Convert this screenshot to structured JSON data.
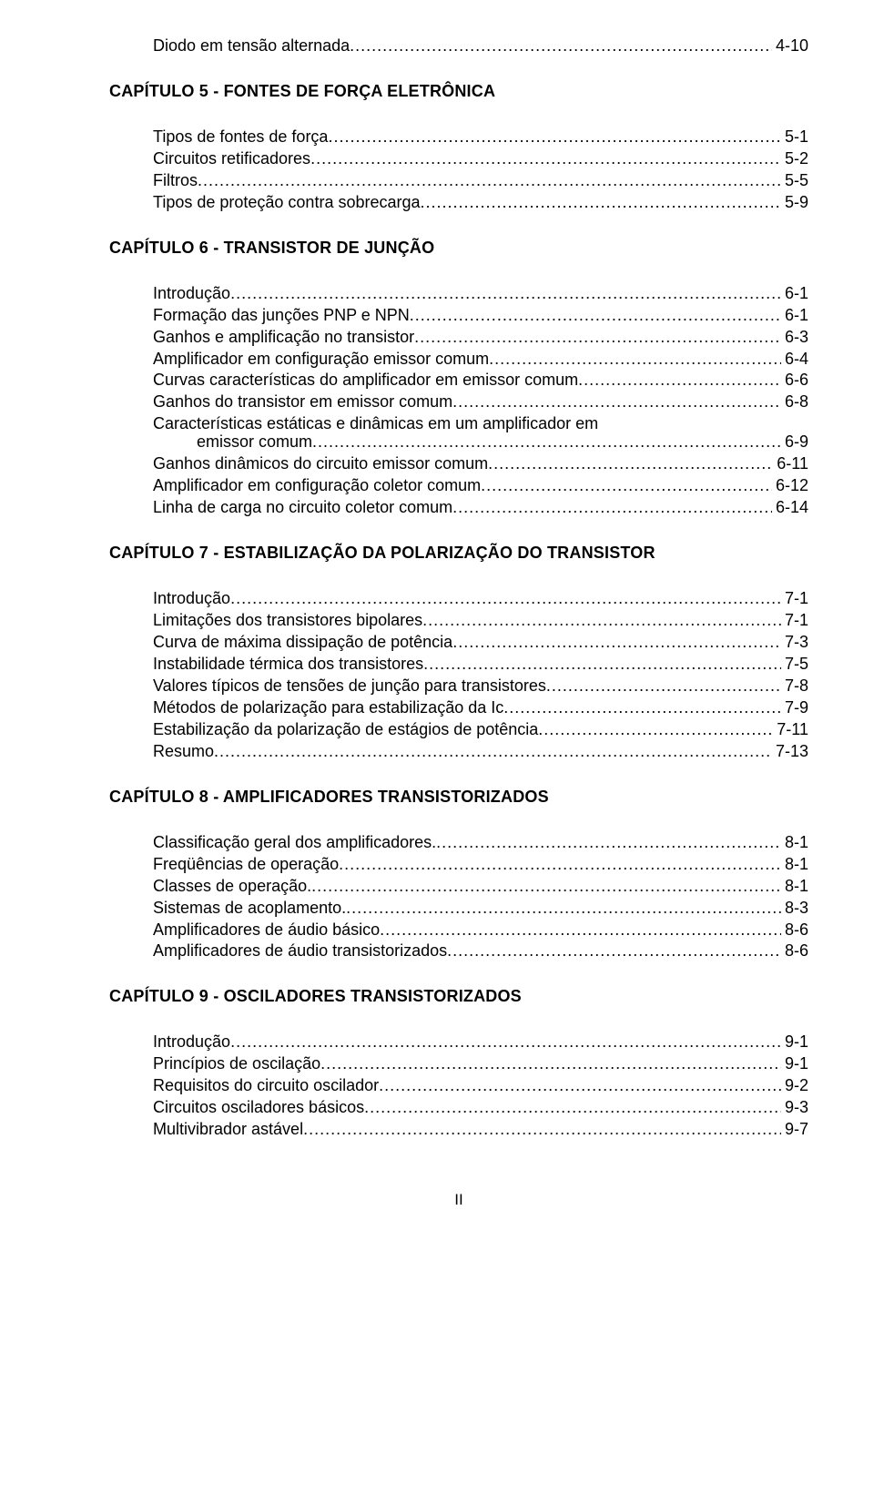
{
  "orphan_entries": [
    {
      "label": "Diodo em tensão alternada",
      "page": "4-10"
    }
  ],
  "chapters": [
    {
      "title": "CAPÍTULO 5  -  FONTES DE FORÇA ELETRÔNICA",
      "entries": [
        {
          "label": "Tipos de fontes de força",
          "page": "5-1"
        },
        {
          "label": "Circuitos retificadores",
          "page": "5-2"
        },
        {
          "label": "Filtros",
          "page": "5-5"
        },
        {
          "label": "Tipos de proteção contra sobrecarga",
          "page": "5-9"
        }
      ]
    },
    {
      "title": "CAPÍTULO 6  -  TRANSISTOR DE JUNÇÃO",
      "entries": [
        {
          "label": "Introdução",
          "page": "6-1"
        },
        {
          "label": "Formação das junções PNP e NPN",
          "page": "6-1"
        },
        {
          "label": "Ganhos e amplificação no transistor",
          "page": "6-3"
        },
        {
          "label": "Amplificador em configuração emissor comum",
          "page": "6-4"
        },
        {
          "label": "Curvas características do amplificador em emissor comum",
          "page": "6-6"
        },
        {
          "label": "Ganhos do transistor em emissor comum",
          "page": "6-8"
        },
        {
          "label": "Características estáticas e dinâmicas em um amplificador em",
          "wrap": "emissor comum",
          "page": "6-9"
        },
        {
          "label": "Ganhos dinâmicos do circuito emissor comum",
          "page": "6-11"
        },
        {
          "label": "Amplificador em configuração coletor comum",
          "page": "6-12"
        },
        {
          "label": "Linha de carga no circuito coletor comum",
          "page": "6-14"
        }
      ]
    },
    {
      "title": "CAPÍTULO  7  -  ESTABILIZAÇÃO DA POLARIZAÇÃO DO TRANSISTOR",
      "entries": [
        {
          "label": "Introdução",
          "page": "7-1"
        },
        {
          "label": "Limitações dos transistores bipolares",
          "page": "7-1"
        },
        {
          "label": "Curva de máxima dissipação de potência",
          "page": "7-3"
        },
        {
          "label": "Instabilidade térmica dos transistores",
          "page": "7-5"
        },
        {
          "label": "Valores típicos de tensões de junção para transistores",
          "page": "7-8"
        },
        {
          "label": "Métodos de polarização para estabilização da  Ic ",
          "page": "7-9"
        },
        {
          "label": "Estabilização da polarização de estágios de potência",
          "page": "7-11"
        },
        {
          "label": "Resumo",
          "page": "7-13"
        }
      ]
    },
    {
      "title": "CAPÍTULO 8  -  AMPLIFICADORES TRANSISTORIZADOS",
      "entries": [
        {
          "label": "Classificação geral dos amplificadores.",
          "page": "8-1"
        },
        {
          "label": "Freqüências de operação",
          "page": "8-1"
        },
        {
          "label": "Classes de operação.",
          "page": "8-1"
        },
        {
          "label": "Sistemas de acoplamento.",
          "page": "8-3"
        },
        {
          "label": "Amplificadores de áudio básico",
          "page": "8-6"
        },
        {
          "label": "Amplificadores de áudio transistorizados",
          "page": "8-6"
        }
      ]
    },
    {
      "title": "CAPÍTULO 9  -  OSCILADORES TRANSISTORIZADOS",
      "entries": [
        {
          "label": "Introdução",
          "page": "9-1"
        },
        {
          "label": "Princípios de oscilação",
          "page": "9-1"
        },
        {
          "label": "Requisitos do circuito oscilador",
          "page": "9-2"
        },
        {
          "label": "Circuitos osciladores básicos",
          "page": "9-3"
        },
        {
          "label": "Multivibrador astável",
          "page": "9-7"
        }
      ]
    }
  ],
  "page_footer": "II"
}
